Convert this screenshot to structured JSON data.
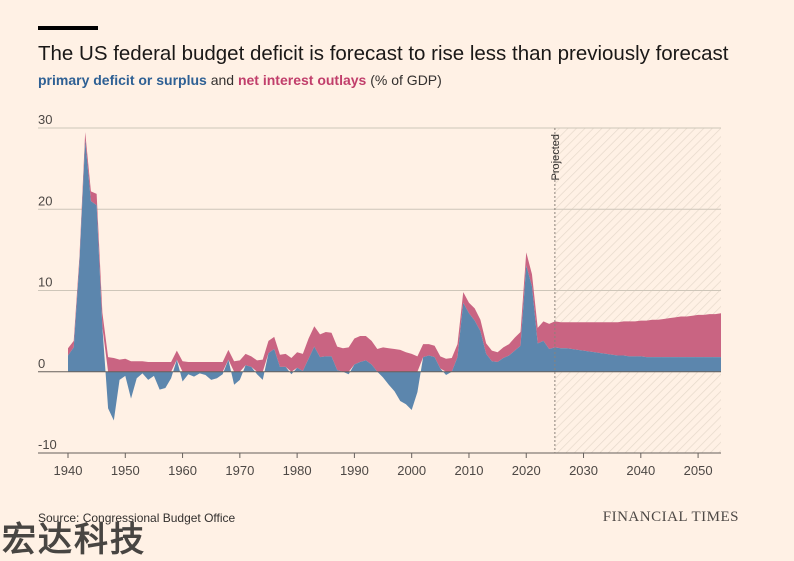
{
  "header": {
    "title": "The US federal budget deficit is forecast to rise less than previously forecast",
    "subtitle_series1": "primary deficit or surplus",
    "subtitle_and": " and ",
    "subtitle_series2": "net interest outlays",
    "subtitle_unit": " (% of GDP)"
  },
  "footer": {
    "source": "Source: Congressional Budget Office",
    "brand": "FINANCIAL TIMES",
    "watermark": "宏达科技"
  },
  "colors": {
    "background": "#FFF1E5",
    "primary": "#5C86AD",
    "interest": "#C96482",
    "grid": "#CEC6B9"
  },
  "chart_data": {
    "type": "area",
    "stacked": true,
    "xlim": [
      1940,
      2054
    ],
    "ylim": [
      -10,
      30
    ],
    "x_ticks": [
      1940,
      1950,
      1960,
      1970,
      1980,
      1990,
      2000,
      2010,
      2020,
      2030,
      2040,
      2050
    ],
    "y_ticks": [
      -10,
      0,
      10,
      20,
      30
    ],
    "annotation": {
      "label": "Projected",
      "x": 2025
    },
    "series": [
      {
        "name": "primary deficit or surplus",
        "x": [
          1940,
          1941,
          1942,
          1943,
          1944,
          1945,
          1946,
          1947,
          1948,
          1949,
          1950,
          1951,
          1952,
          1953,
          1954,
          1955,
          1956,
          1957,
          1958,
          1959,
          1960,
          1961,
          1962,
          1963,
          1964,
          1965,
          1966,
          1967,
          1968,
          1969,
          1970,
          1971,
          1972,
          1973,
          1974,
          1975,
          1976,
          1977,
          1978,
          1979,
          1980,
          1981,
          1982,
          1983,
          1984,
          1985,
          1986,
          1987,
          1988,
          1989,
          1990,
          1991,
          1992,
          1993,
          1994,
          1995,
          1996,
          1997,
          1998,
          1999,
          2000,
          2001,
          2002,
          2003,
          2004,
          2005,
          2006,
          2007,
          2008,
          2009,
          2010,
          2011,
          2012,
          2013,
          2014,
          2015,
          2016,
          2017,
          2018,
          2019,
          2020,
          2021,
          2022,
          2023,
          2024,
          2025,
          2026,
          2027,
          2028,
          2029,
          2030,
          2031,
          2032,
          2033,
          2034,
          2035,
          2036,
          2037,
          2038,
          2039,
          2040,
          2041,
          2042,
          2043,
          2044,
          2045,
          2046,
          2047,
          2048,
          2049,
          2050,
          2051,
          2052,
          2053,
          2054
        ],
        "values": [
          2.0,
          3.0,
          13.5,
          28.5,
          21.0,
          20.5,
          5.5,
          -4.5,
          -6.0,
          -1.0,
          -0.5,
          -3.3,
          -0.8,
          -0.2,
          -1.0,
          -0.5,
          -2.2,
          -2.0,
          -0.8,
          1.5,
          -1.2,
          -0.3,
          -0.6,
          -0.2,
          -0.4,
          -1.0,
          -0.8,
          -0.3,
          1.5,
          -1.6,
          -1.0,
          0.8,
          0.6,
          -0.3,
          -1.0,
          2.3,
          2.8,
          0.6,
          0.6,
          -0.3,
          0.5,
          0.1,
          1.6,
          3.1,
          1.8,
          1.9,
          1.9,
          0.2,
          0.0,
          -0.3,
          0.9,
          1.2,
          1.4,
          0.9,
          0.0,
          -0.7,
          -1.6,
          -2.4,
          -3.6,
          -4.0,
          -4.7,
          -2.5,
          1.8,
          2.0,
          1.8,
          0.4,
          -0.4,
          0.0,
          1.8,
          8.5,
          7.2,
          6.3,
          5.0,
          2.2,
          1.3,
          1.2,
          1.7,
          2.0,
          2.6,
          3.2,
          13.1,
          10.5,
          3.5,
          3.8,
          2.8,
          3.0,
          2.9,
          2.9,
          2.8,
          2.7,
          2.6,
          2.5,
          2.4,
          2.3,
          2.2,
          2.1,
          2.0,
          2.0,
          1.9,
          1.9,
          1.9,
          1.8,
          1.8,
          1.8,
          1.8,
          1.8,
          1.8,
          1.8,
          1.8,
          1.8,
          1.8,
          1.8,
          1.8,
          1.8,
          1.8
        ]
      },
      {
        "name": "net interest outlays",
        "x": [
          1940,
          1941,
          1942,
          1943,
          1944,
          1945,
          1946,
          1947,
          1948,
          1949,
          1950,
          1951,
          1952,
          1953,
          1954,
          1955,
          1956,
          1957,
          1958,
          1959,
          1960,
          1961,
          1962,
          1963,
          1964,
          1965,
          1966,
          1967,
          1968,
          1969,
          1970,
          1971,
          1972,
          1973,
          1974,
          1975,
          1976,
          1977,
          1978,
          1979,
          1980,
          1981,
          1982,
          1983,
          1984,
          1985,
          1986,
          1987,
          1988,
          1989,
          1990,
          1991,
          1992,
          1993,
          1994,
          1995,
          1996,
          1997,
          1998,
          1999,
          2000,
          2001,
          2002,
          2003,
          2004,
          2005,
          2006,
          2007,
          2008,
          2009,
          2010,
          2011,
          2012,
          2013,
          2014,
          2015,
          2016,
          2017,
          2018,
          2019,
          2020,
          2021,
          2022,
          2023,
          2024,
          2025,
          2026,
          2027,
          2028,
          2029,
          2030,
          2031,
          2032,
          2033,
          2034,
          2035,
          2036,
          2037,
          2038,
          2039,
          2040,
          2041,
          2042,
          2043,
          2044,
          2045,
          2046,
          2047,
          2048,
          2049,
          2050,
          2051,
          2052,
          2053,
          2054
        ],
        "values": [
          0.9,
          0.8,
          0.7,
          1.0,
          1.2,
          1.4,
          1.8,
          1.8,
          1.7,
          1.5,
          1.6,
          1.3,
          1.3,
          1.3,
          1.2,
          1.2,
          1.2,
          1.2,
          1.2,
          1.1,
          1.3,
          1.2,
          1.2,
          1.2,
          1.2,
          1.2,
          1.2,
          1.2,
          1.2,
          1.3,
          1.4,
          1.4,
          1.3,
          1.4,
          1.5,
          1.5,
          1.5,
          1.5,
          1.6,
          1.7,
          1.9,
          2.1,
          2.5,
          2.5,
          2.8,
          3.0,
          2.9,
          2.9,
          2.9,
          3.0,
          3.2,
          3.2,
          3.0,
          2.9,
          2.8,
          3.0,
          2.9,
          2.8,
          2.7,
          2.4,
          2.2,
          1.9,
          1.6,
          1.4,
          1.4,
          1.5,
          1.6,
          1.7,
          1.6,
          1.3,
          1.3,
          1.5,
          1.4,
          1.3,
          1.3,
          1.2,
          1.3,
          1.4,
          1.6,
          1.7,
          1.6,
          1.5,
          1.9,
          2.4,
          3.1,
          3.2,
          3.2,
          3.2,
          3.3,
          3.4,
          3.5,
          3.6,
          3.7,
          3.8,
          3.9,
          4.0,
          4.1,
          4.2,
          4.3,
          4.3,
          4.4,
          4.5,
          4.6,
          4.6,
          4.7,
          4.8,
          4.9,
          5.0,
          5.0,
          5.1,
          5.2,
          5.2,
          5.3,
          5.3,
          5.4
        ]
      }
    ]
  }
}
